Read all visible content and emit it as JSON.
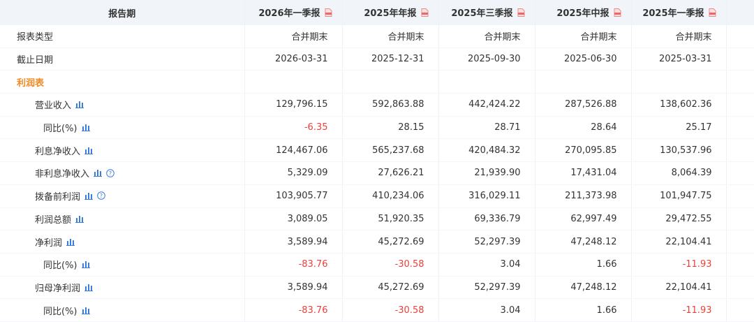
{
  "table": {
    "header": [
      "报告期",
      "2026年一季报",
      "2025年年报",
      "2025年三季报",
      "2025年中报",
      "2025年一季报"
    ],
    "rows": [
      {
        "label": "报表类型",
        "values": [
          "合并期末",
          "合并期末",
          "合并期末",
          "合并期末",
          "合并期末"
        ]
      },
      {
        "label": "截止日期",
        "values": [
          "2026-03-31",
          "2025-12-31",
          "2025-09-30",
          "2025-06-30",
          "2025-03-31"
        ]
      },
      {
        "label": "利润表"
      },
      {
        "label": "营业收入",
        "values": [
          "129,796.15",
          "592,863.88",
          "442,424.22",
          "287,526.88",
          "138,602.36"
        ]
      },
      {
        "label": "同比(%)",
        "values": [
          "-6.35",
          "28.15",
          "28.71",
          "28.64",
          "25.17"
        ]
      },
      {
        "label": "利息净收入",
        "values": [
          "124,467.06",
          "565,237.68",
          "420,484.32",
          "270,095.85",
          "130,537.96"
        ]
      },
      {
        "label": "非利息净收入",
        "values": [
          "5,329.09",
          "27,626.21",
          "21,939.90",
          "17,431.04",
          "8,064.39"
        ]
      },
      {
        "label": "拨备前利润",
        "values": [
          "103,905.77",
          "410,234.06",
          "316,029.11",
          "211,373.98",
          "101,947.75"
        ]
      },
      {
        "label": "利润总额",
        "values": [
          "3,089.05",
          "51,920.35",
          "69,336.79",
          "62,997.49",
          "29,472.55"
        ]
      },
      {
        "label": "净利润",
        "values": [
          "3,589.94",
          "45,272.69",
          "52,297.39",
          "47,248.12",
          "22,104.41"
        ]
      },
      {
        "label": "同比(%)",
        "values": [
          "-83.76",
          "-30.58",
          "3.04",
          "1.66",
          "-11.93"
        ]
      },
      {
        "label": "归母净利润",
        "values": [
          "3,589.94",
          "45,272.69",
          "52,297.39",
          "47,248.12",
          "22,104.41"
        ]
      },
      {
        "label": "同比(%)",
        "values": [
          "-83.76",
          "-30.58",
          "3.04",
          "1.66",
          "-11.93"
        ]
      }
    ]
  }
}
